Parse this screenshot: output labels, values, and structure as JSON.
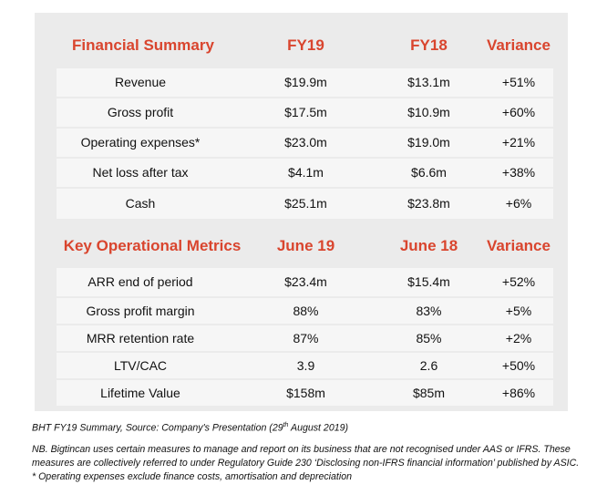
{
  "financial": {
    "header": {
      "title": "Financial Summary",
      "col_a": "FY19",
      "col_b": "FY18",
      "col_c": "Variance"
    },
    "rows": [
      {
        "label": "Revenue",
        "a": "$19.9m",
        "b": "$13.1m",
        "c": "+51%"
      },
      {
        "label": "Gross profit",
        "a": "$17.5m",
        "b": "$10.9m",
        "c": "+60%"
      },
      {
        "label": "Operating expenses*",
        "a": "$23.0m",
        "b": "$19.0m",
        "c": "+21%"
      },
      {
        "label": "Net loss after tax",
        "a": "$4.1m",
        "b": "$6.6m",
        "c": "+38%"
      },
      {
        "label": "Cash",
        "a": "$25.1m",
        "b": "$23.8m",
        "c": "+6%"
      }
    ]
  },
  "operational": {
    "header": {
      "title": "Key Operational Metrics",
      "col_a": "June 19",
      "col_b": "June 18",
      "col_c": "Variance"
    },
    "rows": [
      {
        "label": "ARR end of period",
        "a": "$23.4m",
        "b": "$15.4m",
        "c": "+52%"
      },
      {
        "label": "Gross profit margin",
        "a": "88%",
        "b": "83%",
        "c": "+5%"
      },
      {
        "label": "MRR retention rate",
        "a": "87%",
        "b": "85%",
        "c": "+2%"
      },
      {
        "label": "LTV/CAC",
        "a": "3.9",
        "b": "2.6",
        "c": "+50%"
      },
      {
        "label": "Lifetime Value",
        "a": "$158m",
        "b": "$85m",
        "c": "+86%"
      }
    ]
  },
  "caption": {
    "source_prefix": "BHT FY19 Summary, Source: Company's Presentation (29",
    "source_sup": "th",
    "source_suffix": " August 2019)",
    "note": "NB. Bigtincan uses certain measures to manage and report on its business that are not recognised under AAS or IFRS. These measures are collectively referred to under Regulatory Guide 230 ‘Disclosing non-IFRS financial information’ published by ASIC. * Operating expenses exclude finance costs, amortisation and depreciation"
  },
  "colors": {
    "accent": "#d9452e",
    "panel_bg": "#ebebeb",
    "row_bg": "#f6f6f6"
  }
}
